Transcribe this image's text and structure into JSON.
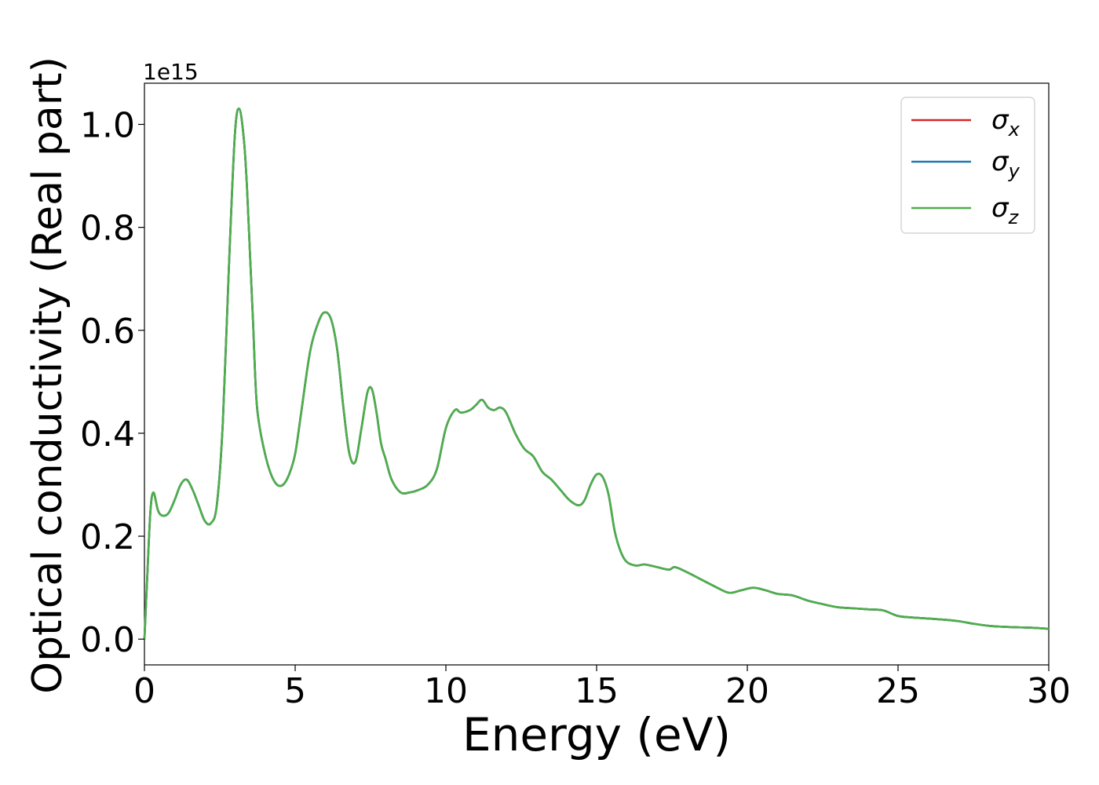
{
  "chart_data": {
    "type": "line",
    "xlabel": "Energy (eV)",
    "ylabel": "Optical conductivity (Real part)",
    "offset_text": "1e15",
    "xlim": [
      0,
      30
    ],
    "ylim": [
      -0.05,
      1.08
    ],
    "y_multiplier": 1000000000000000.0,
    "xticks": [
      0,
      5,
      10,
      15,
      20,
      25,
      30
    ],
    "xtick_labels": [
      "0",
      "5",
      "10",
      "15",
      "20",
      "25",
      "30"
    ],
    "yticks": [
      0.0,
      0.2,
      0.4,
      0.6,
      0.8,
      1.0
    ],
    "ytick_labels": [
      "0.0",
      "0.2",
      "0.4",
      "0.6",
      "0.8",
      "1.0"
    ],
    "grid": false,
    "legend_position": "top-right",
    "series": [
      {
        "name": "σx",
        "symbol": "σ",
        "subscript": "x",
        "color": "#d62728"
      },
      {
        "name": "σy",
        "symbol": "σ",
        "subscript": "y",
        "color": "#1f77b4"
      },
      {
        "name": "σz",
        "symbol": "σ",
        "subscript": "z",
        "color": "#4daf4a"
      }
    ],
    "x": [
      0,
      0.1,
      0.2,
      0.3,
      0.45,
      0.6,
      0.8,
      1.0,
      1.2,
      1.4,
      1.6,
      1.8,
      2.0,
      2.2,
      2.4,
      2.6,
      2.8,
      3.0,
      3.15,
      3.3,
      3.4,
      3.5,
      3.6,
      3.7,
      3.8,
      4.0,
      4.2,
      4.4,
      4.6,
      4.8,
      5.0,
      5.2,
      5.5,
      5.8,
      6.0,
      6.2,
      6.4,
      6.6,
      6.8,
      7.0,
      7.2,
      7.4,
      7.55,
      7.7,
      7.85,
      8.0,
      8.2,
      8.5,
      8.8,
      9.1,
      9.4,
      9.7,
      10.0,
      10.3,
      10.5,
      10.8,
      11.0,
      11.2,
      11.4,
      11.6,
      11.8,
      12.0,
      12.3,
      12.6,
      12.9,
      13.2,
      13.5,
      13.8,
      14.1,
      14.4,
      14.6,
      14.8,
      15.0,
      15.2,
      15.4,
      15.6,
      15.8,
      16.0,
      16.3,
      16.6,
      17.0,
      17.4,
      17.6,
      18.0,
      18.5,
      19.0,
      19.4,
      19.8,
      20.2,
      20.6,
      21.0,
      21.5,
      22.0,
      22.5,
      23.0,
      23.5,
      24.0,
      24.5,
      25.0,
      25.5,
      26.0,
      26.5,
      27.0,
      27.5,
      28.0,
      28.5,
      29.0,
      29.5,
      30.0
    ],
    "y": [
      0.0,
      0.13,
      0.25,
      0.285,
      0.25,
      0.24,
      0.245,
      0.27,
      0.3,
      0.31,
      0.29,
      0.26,
      0.23,
      0.225,
      0.26,
      0.42,
      0.72,
      0.98,
      1.03,
      0.97,
      0.88,
      0.75,
      0.62,
      0.48,
      0.42,
      0.36,
      0.32,
      0.3,
      0.3,
      0.32,
      0.36,
      0.44,
      0.56,
      0.62,
      0.635,
      0.62,
      0.56,
      0.45,
      0.36,
      0.345,
      0.41,
      0.48,
      0.485,
      0.44,
      0.38,
      0.35,
      0.31,
      0.285,
      0.285,
      0.29,
      0.3,
      0.33,
      0.41,
      0.445,
      0.44,
      0.445,
      0.455,
      0.465,
      0.45,
      0.445,
      0.45,
      0.44,
      0.4,
      0.37,
      0.355,
      0.325,
      0.31,
      0.29,
      0.27,
      0.26,
      0.27,
      0.3,
      0.32,
      0.315,
      0.28,
      0.21,
      0.17,
      0.15,
      0.143,
      0.145,
      0.14,
      0.135,
      0.14,
      0.13,
      0.115,
      0.1,
      0.09,
      0.095,
      0.1,
      0.095,
      0.088,
      0.085,
      0.075,
      0.068,
      0.062,
      0.06,
      0.058,
      0.056,
      0.045,
      0.042,
      0.04,
      0.038,
      0.035,
      0.03,
      0.026,
      0.024,
      0.023,
      0.022,
      0.02
    ]
  }
}
